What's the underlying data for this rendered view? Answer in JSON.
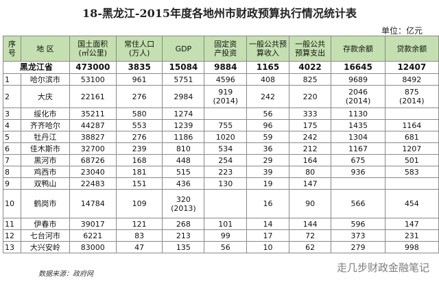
{
  "header": {
    "title": "18-黑龙江-2015年度各地州市财政预算执行情况统计表",
    "unit": "单位：亿元"
  },
  "table": {
    "columns": [
      [
        "序",
        "号"
      ],
      [
        "地 区"
      ],
      [
        "国土面积",
        "(㎡公里)"
      ],
      [
        "常住人口",
        "(万人)"
      ],
      [
        "GDP"
      ],
      [
        "固定资",
        "产投资"
      ],
      [
        "一般公共预",
        "算收入"
      ],
      [
        "一般公共",
        "预算支出"
      ],
      [
        "存款余额"
      ],
      [
        "贷款余额"
      ]
    ],
    "total": [
      "黑龙江省",
      473000,
      3835,
      15084,
      9884,
      1165,
      4022,
      16645,
      12407
    ],
    "rows": [
      [
        1,
        "哈尔滨市",
        53100,
        961,
        5751,
        4596,
        408,
        825,
        9689,
        8492
      ],
      [
        2,
        "大庆",
        22161,
        276,
        2984,
        {
          "value": 919,
          "note": "(2014)"
        },
        242,
        220,
        {
          "value": 2046,
          "note": "(2014)"
        },
        {
          "value": 875,
          "note": "(2014)"
        }
      ],
      [
        3,
        "绥化市",
        35211,
        580,
        1274,
        null,
        56,
        333,
        1130,
        null
      ],
      [
        4,
        "齐齐哈尔",
        44287,
        553,
        1239,
        755,
        96,
        175,
        1435,
        1164
      ],
      [
        5,
        "牡丹江",
        38827,
        276,
        1186,
        1020,
        59,
        242,
        1304,
        681
      ],
      [
        6,
        "佳木斯市",
        32700,
        239,
        810,
        534,
        36,
        212,
        1167,
        1207
      ],
      [
        7,
        "黑河市",
        68726,
        168,
        448,
        254,
        29,
        164,
        675,
        501
      ],
      [
        8,
        "鸡西市",
        23040,
        181,
        515,
        223,
        39,
        80,
        936,
        583
      ],
      [
        9,
        "双鸭山",
        22483,
        151,
        436,
        130,
        19,
        147,
        null,
        null
      ],
      [
        10,
        "鹤岗市",
        14784,
        109,
        {
          "value": 320,
          "note": "(2013)"
        },
        null,
        16,
        90,
        566,
        454
      ],
      [
        11,
        "伊春市",
        39017,
        121,
        268,
        101,
        14,
        144,
        596,
        147
      ],
      [
        12,
        "七台河市",
        6221,
        83,
        213,
        99,
        17,
        72,
        373,
        231
      ],
      [
        13,
        "大兴安岭",
        83000,
        47,
        135,
        56,
        10,
        62,
        279,
        998
      ]
    ]
  },
  "footer": {
    "source": "数据来源：政府网",
    "watermark": "走几步财政金融笔记"
  }
}
